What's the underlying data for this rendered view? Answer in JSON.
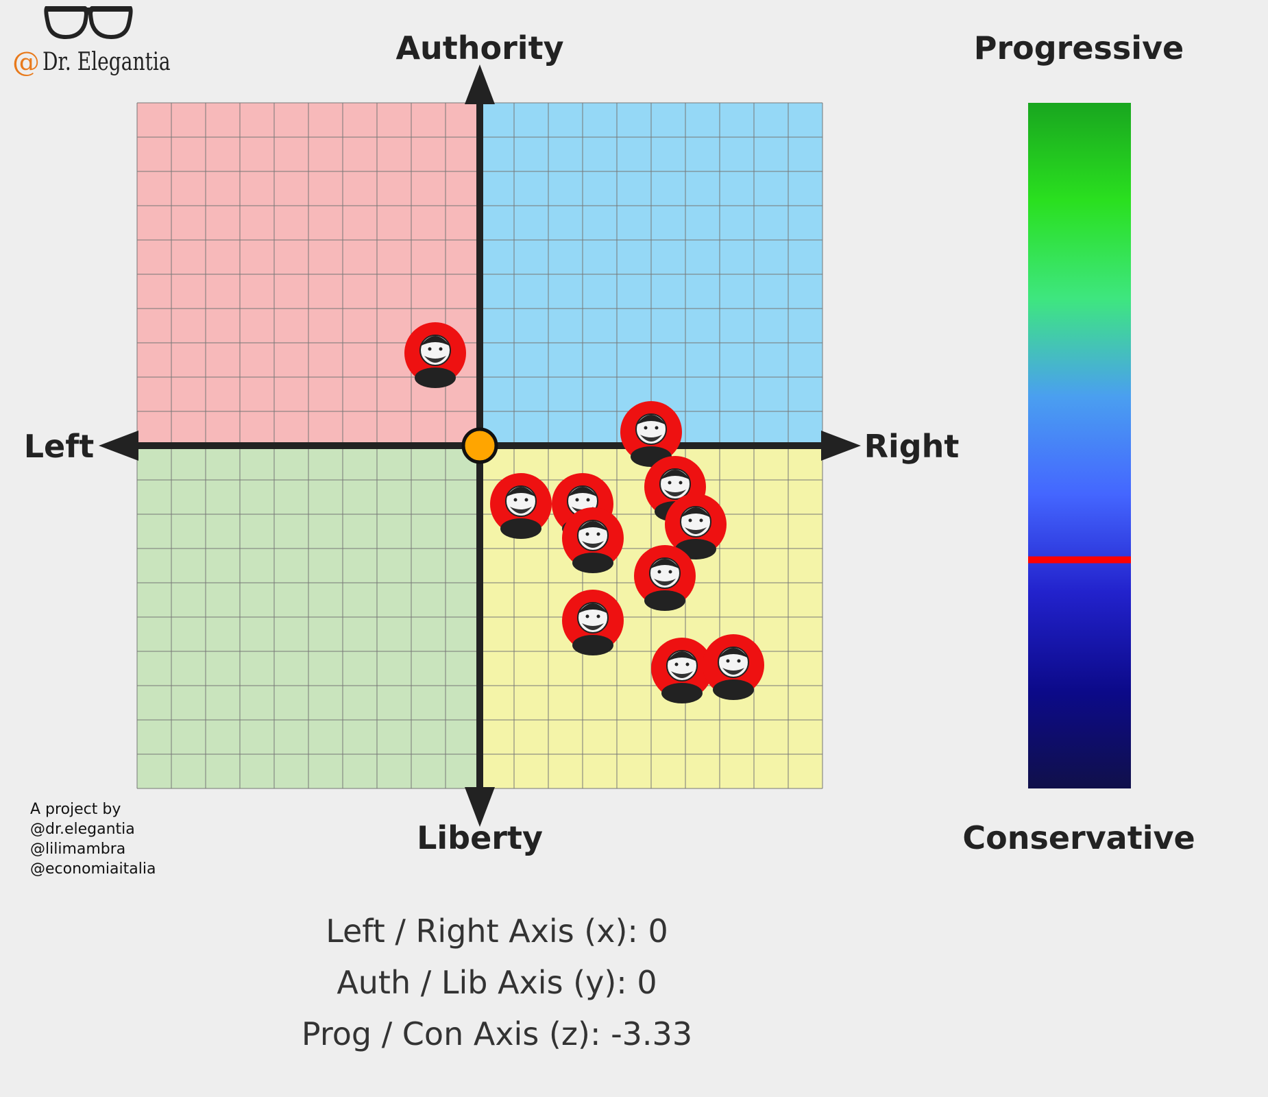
{
  "brand": {
    "at_symbol": "@",
    "name": "Dr. Elegantia",
    "accent_color": "#e87a1c",
    "icon": "glasses-icon"
  },
  "credits": {
    "lines": [
      "A project by",
      "@dr.elegantia",
      "@lilimambra",
      "@economiaitalia"
    ]
  },
  "stats": {
    "x_line": "Left / Right Axis (x): 0",
    "y_line": "Auth / Lib Axis (y): 0",
    "z_line": "Prog / Con Axis (z): -3.33"
  },
  "chart_data": [
    {
      "type": "scatter",
      "labels": {
        "top": "Authority",
        "bottom": "Liberty",
        "left": "Left",
        "right": "Right"
      },
      "xlim": [
        -10,
        10
      ],
      "ylim": [
        -10,
        10
      ],
      "grid": true,
      "quadrant_colors": {
        "auth_left": "#f7b9ba",
        "auth_right": "#95d8f6",
        "lib_left": "#c9e4bd",
        "lib_right": "#f4f4a8"
      },
      "user_point": {
        "x": 0,
        "y": 0,
        "color": "#ffa500"
      },
      "avatar_points": [
        {
          "x": -1.3,
          "y": 2.7,
          "avatar": "bearded-man-avatar"
        },
        {
          "x": 5.0,
          "y": 0.4,
          "avatar": "man-in-suit-avatar"
        },
        {
          "x": 5.7,
          "y": -1.2,
          "avatar": "mustached-man-avatar"
        },
        {
          "x": 1.2,
          "y": -1.7,
          "avatar": "man-with-glasses-avatar"
        },
        {
          "x": 3.0,
          "y": -1.7,
          "avatar": "man-with-beard-avatar"
        },
        {
          "x": 6.3,
          "y": -2.3,
          "avatar": "curly-haired-man-avatar"
        },
        {
          "x": 3.3,
          "y": -2.7,
          "avatar": "woman-avatar"
        },
        {
          "x": 5.4,
          "y": -3.8,
          "avatar": "man-with-cap-avatar"
        },
        {
          "x": 3.3,
          "y": -5.1,
          "avatar": "bald-man-with-glasses-avatar"
        },
        {
          "x": 5.9,
          "y": -6.5,
          "avatar": "bearded-man-avatar"
        },
        {
          "x": 7.4,
          "y": -6.4,
          "avatar": "bearded-man-with-glasses-avatar"
        }
      ]
    },
    {
      "type": "bar",
      "orientation": "vertical-gauge",
      "labels": {
        "top": "Progressive",
        "bottom": "Conservative"
      },
      "ylim": [
        -10,
        10
      ],
      "value": -3.33,
      "gradient_colors": [
        "#19a61f",
        "#2ae01f",
        "#3ee67f",
        "#4a9ff0",
        "#4466ff",
        "#2222cc",
        "#0c0a8a",
        "#10104a"
      ],
      "marker_color": "#ff0000"
    }
  ]
}
